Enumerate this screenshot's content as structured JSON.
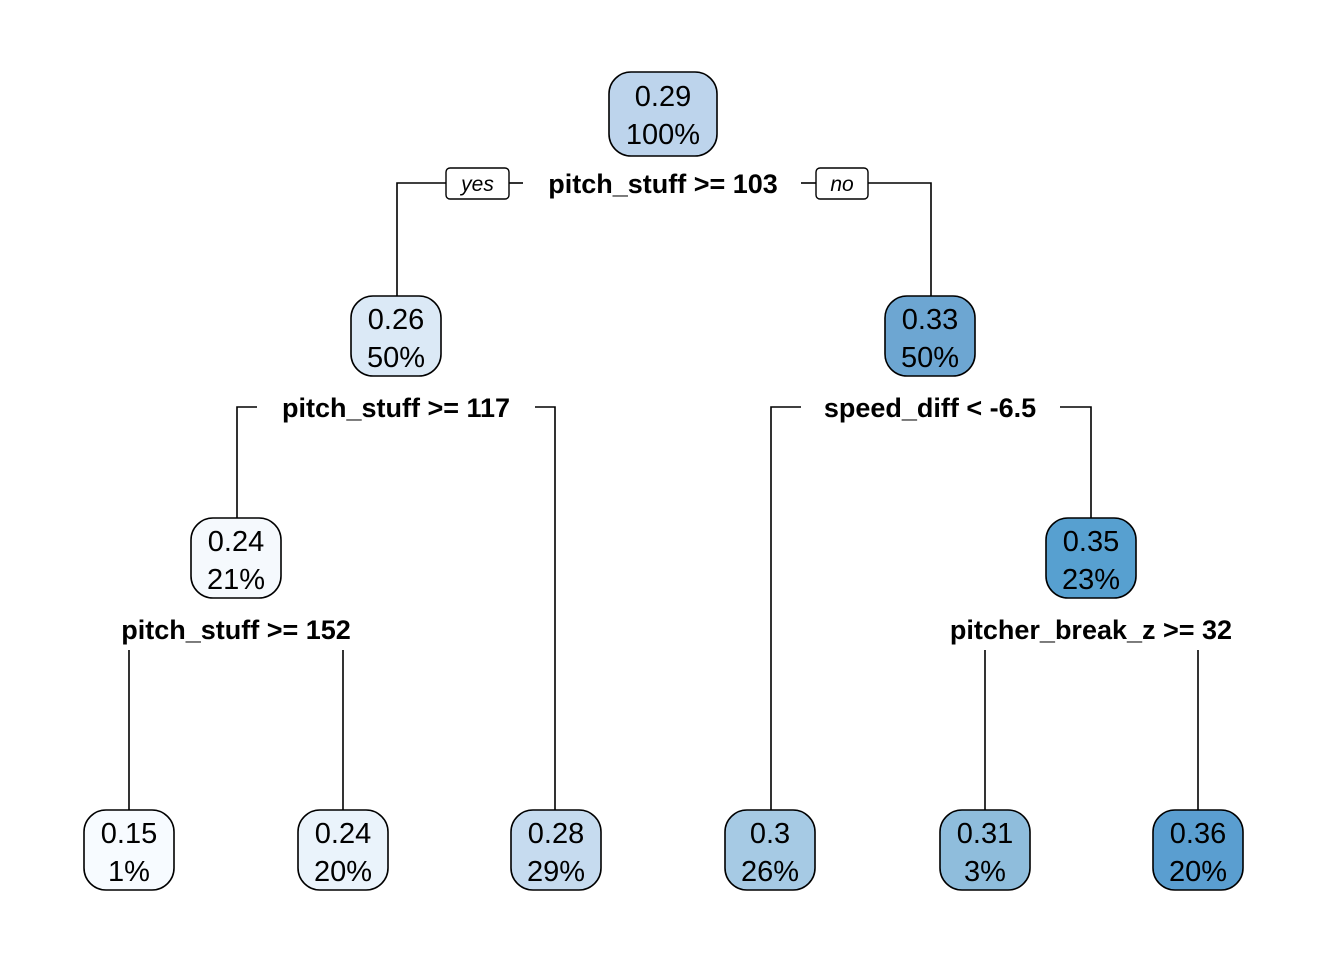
{
  "tree": {
    "edge_labels": {
      "yes": "yes",
      "no": "no"
    },
    "splits": [
      {
        "id": "root",
        "label": "pitch_stuff >= 103"
      },
      {
        "id": "left",
        "label": "pitch_stuff >= 117"
      },
      {
        "id": "right",
        "label": "speed_diff < -6.5"
      },
      {
        "id": "ll",
        "label": "pitch_stuff >= 152"
      },
      {
        "id": "rr",
        "label": "pitcher_break_z >= 32"
      }
    ],
    "nodes": [
      {
        "id": "n1",
        "value": "0.29",
        "percent": "100%",
        "fill": "#bdd4ec"
      },
      {
        "id": "n2",
        "value": "0.26",
        "percent": "50%",
        "fill": "#dbe9f6"
      },
      {
        "id": "n3",
        "value": "0.33",
        "percent": "50%",
        "fill": "#6da6d2"
      },
      {
        "id": "n4",
        "value": "0.24",
        "percent": "21%",
        "fill": "#f5f9fd"
      },
      {
        "id": "n7",
        "value": "0.35",
        "percent": "23%",
        "fill": "#57a0d0"
      },
      {
        "id": "n8",
        "value": "0.15",
        "percent": "1%",
        "fill": "#f7fbff"
      },
      {
        "id": "n9",
        "value": "0.24",
        "percent": "20%",
        "fill": "#eaf3fb"
      },
      {
        "id": "n5",
        "value": "0.28",
        "percent": "29%",
        "fill": "#c6dbef"
      },
      {
        "id": "n6",
        "value": "0.3",
        "percent": "26%",
        "fill": "#a6cae4"
      },
      {
        "id": "n14",
        "value": "0.31",
        "percent": "3%",
        "fill": "#8fbddc"
      },
      {
        "id": "n15",
        "value": "0.36",
        "percent": "20%",
        "fill": "#5a9ed0"
      }
    ]
  }
}
